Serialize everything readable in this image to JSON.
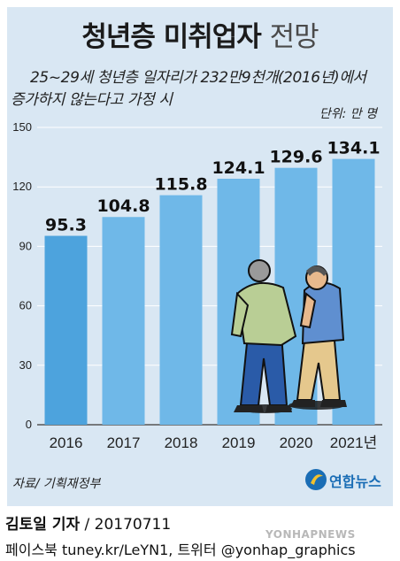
{
  "header": {
    "title_main": "청년층 미취업자",
    "title_light": "전망"
  },
  "subtitle": {
    "line1": "25~29세 청년층 일자리가 232만9천개(2016년)에서",
    "line2": "증가하지 않는다고 가정 시"
  },
  "unit_label": "단위: 만 명",
  "source_label": "자료/ 기획재정부",
  "logo": {
    "text": "연합뉴스",
    "watermark": "YONHAPNEWS"
  },
  "credit": {
    "author": "김토일 기자",
    "date": " / 20170711"
  },
  "social": "페이스북 tuney.kr/LeYN1, 트위터 @yonhap_graphics",
  "colors": {
    "background": "#d9e7f3",
    "bar_first": "#4da3dd",
    "bar": "#6fb8e8",
    "grid": "#ffffff"
  },
  "chart_data": {
    "type": "bar",
    "title": "청년층 미취업자 전망",
    "categories": [
      "2016",
      "2017",
      "2018",
      "2019",
      "2020",
      "2021년"
    ],
    "values": [
      95.3,
      104.8,
      115.8,
      124.1,
      129.6,
      134.1
    ],
    "value_labels": [
      "95.3",
      "104.8",
      "115.8",
      "124.1",
      "129.6",
      "134.1"
    ],
    "yticks": [
      0,
      30,
      60,
      90,
      120,
      150
    ],
    "ylim": [
      0,
      150
    ],
    "grid": true,
    "illustration": "two-men-walking"
  }
}
